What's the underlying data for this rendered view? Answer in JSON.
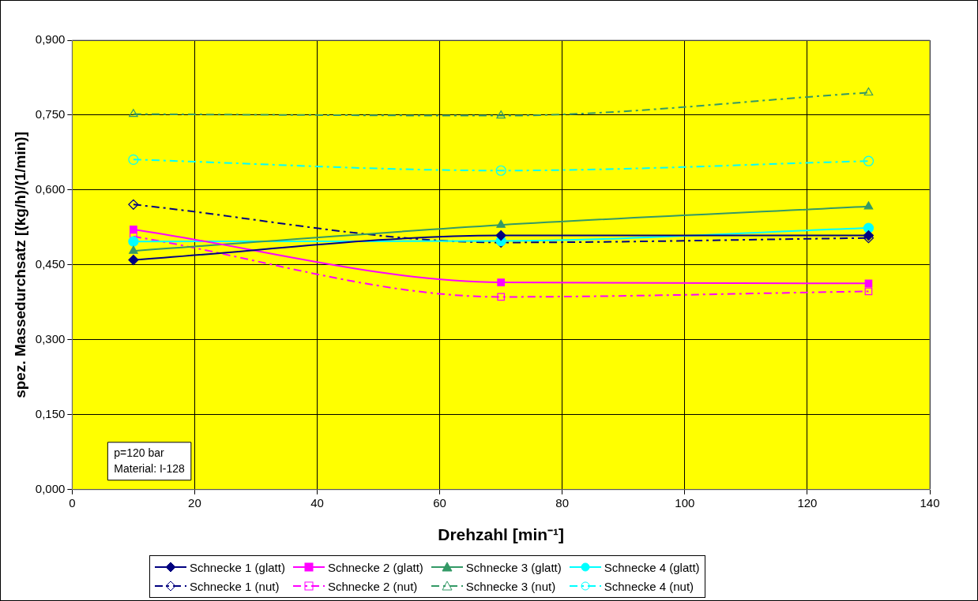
{
  "chart_data": {
    "type": "line",
    "xlabel": "Drehzahl [min⁻¹]",
    "ylabel": "spez. Massedurchsatz [(kg/h)/(1/min)]",
    "x": [
      10,
      70,
      130
    ],
    "series": [
      {
        "name": "Schnecke 1 (glatt)",
        "color": "#000080",
        "marker": "diamond",
        "line_style": "solid",
        "values": [
          0.46,
          0.509,
          0.509
        ]
      },
      {
        "name": "Schnecke 2 (glatt)",
        "color": "#ff00ff",
        "marker": "square",
        "line_style": "solid",
        "values": [
          0.521,
          0.415,
          0.413
        ]
      },
      {
        "name": "Schnecke 3 (glatt)",
        "color": "#339966",
        "marker": "triangle",
        "line_style": "solid",
        "values": [
          0.478,
          0.53,
          0.567
        ]
      },
      {
        "name": "Schnecke 4 (glatt)",
        "color": "#00ffff",
        "marker": "circle",
        "line_style": "solid",
        "values": [
          0.497,
          0.498,
          0.524
        ]
      },
      {
        "name": "Schnecke 1 (nut)",
        "color": "#000080",
        "marker": "diamond",
        "line_style": "dashed",
        "values": [
          0.571,
          0.495,
          0.504
        ]
      },
      {
        "name": "Schnecke 2 (nut)",
        "color": "#ff00ff",
        "marker": "square",
        "line_style": "dashed",
        "values": [
          0.507,
          0.386,
          0.397
        ]
      },
      {
        "name": "Schnecke 3 (nut)",
        "color": "#339966",
        "marker": "triangle",
        "line_style": "dashed",
        "values": [
          0.752,
          0.749,
          0.795
        ]
      },
      {
        "name": "Schnecke 4 (nut)",
        "color": "#00ffff",
        "marker": "circle",
        "line_style": "dashed",
        "values": [
          0.661,
          0.639,
          0.658
        ]
      }
    ],
    "xlim": [
      0,
      140
    ],
    "xticks": [
      0,
      20,
      40,
      60,
      80,
      100,
      120,
      140
    ],
    "ylim": [
      0,
      0.9
    ],
    "yticks": [
      {
        "value": 0,
        "label": "0,000"
      },
      {
        "value": 0.15,
        "label": "0,150"
      },
      {
        "value": 0.3,
        "label": "0,300"
      },
      {
        "value": 0.45,
        "label": "0,450"
      },
      {
        "value": 0.6,
        "label": "0,600"
      },
      {
        "value": 0.75,
        "label": "0,750"
      },
      {
        "value": 0.9,
        "label": "0,900"
      }
    ],
    "grid": true,
    "legend": "bottom",
    "annotations": [
      "p=120 bar",
      "Material: I-128"
    ]
  }
}
